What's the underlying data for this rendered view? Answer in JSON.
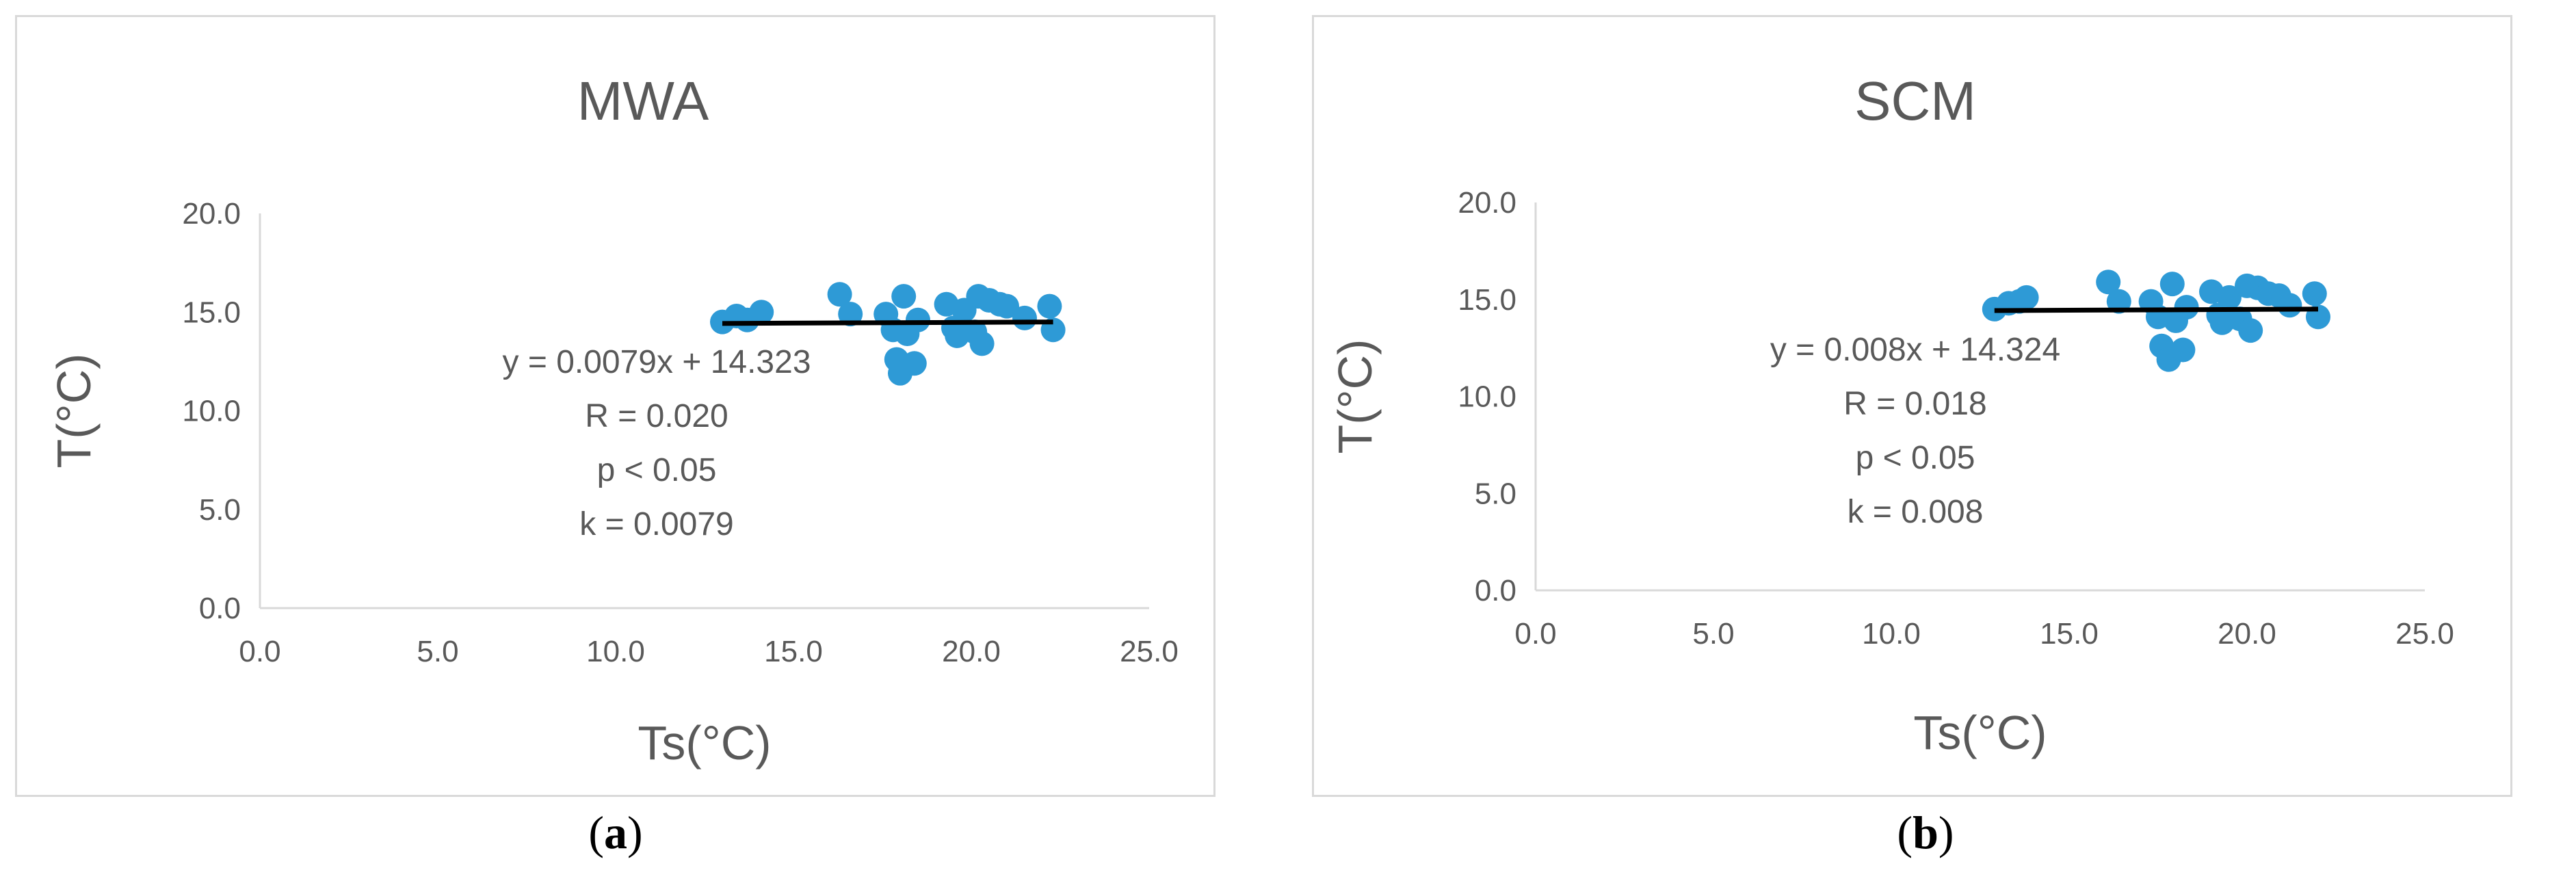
{
  "chart_data": [
    {
      "type": "scatter",
      "panel": "a",
      "title": "MWA",
      "xlabel": "Ts(°C)",
      "ylabel": "T(°C)",
      "xlim": [
        0,
        25
      ],
      "ylim": [
        0,
        20
      ],
      "xticks": [
        "0.0",
        "5.0",
        "10.0",
        "15.0",
        "20.0",
        "25.0"
      ],
      "yticks": [
        "0.0",
        "5.0",
        "10.0",
        "15.0",
        "20.0"
      ],
      "grid": false,
      "marker_color": "#2e9ad6",
      "trendline": {
        "slope": 0.0079,
        "intercept": 14.323,
        "x_range": [
          13.0,
          22.3
        ],
        "color": "#000000"
      },
      "annotation": [
        "y = 0.0079x + 14.323",
        "R = 0.020",
        "p < 0.05",
        "k = 0.0079"
      ],
      "points": [
        [
          13.0,
          14.5
        ],
        [
          13.4,
          14.8
        ],
        [
          13.7,
          14.6
        ],
        [
          14.1,
          15.0
        ],
        [
          16.3,
          15.9
        ],
        [
          16.6,
          14.9
        ],
        [
          17.6,
          14.9
        ],
        [
          17.8,
          14.1
        ],
        [
          17.9,
          12.6
        ],
        [
          18.0,
          11.9
        ],
        [
          18.1,
          15.8
        ],
        [
          18.2,
          13.9
        ],
        [
          18.4,
          12.4
        ],
        [
          18.5,
          14.6
        ],
        [
          19.3,
          15.4
        ],
        [
          19.5,
          14.2
        ],
        [
          19.6,
          13.8
        ],
        [
          19.8,
          15.1
        ],
        [
          20.1,
          14.0
        ],
        [
          20.2,
          15.8
        ],
        [
          20.3,
          13.4
        ],
        [
          20.5,
          15.6
        ],
        [
          20.8,
          15.4
        ],
        [
          21.0,
          15.3
        ],
        [
          21.5,
          14.7
        ],
        [
          22.2,
          15.3
        ],
        [
          22.3,
          14.1
        ]
      ]
    },
    {
      "type": "scatter",
      "panel": "b",
      "title": "SCM",
      "xlabel": "Ts(°C)",
      "ylabel": "T(°C)",
      "xlim": [
        0,
        25
      ],
      "ylim": [
        0,
        20
      ],
      "xticks": [
        "0.0",
        "5.0",
        "10.0",
        "15.0",
        "20.0",
        "25.0"
      ],
      "yticks": [
        "0.0",
        "5.0",
        "10.0",
        "15.0",
        "20.0"
      ],
      "grid": false,
      "marker_color": "#2e9ad6",
      "trendline": {
        "slope": 0.008,
        "intercept": 14.324,
        "x_range": [
          12.9,
          22.0
        ],
        "color": "#000000"
      },
      "annotation": [
        "y = 0.008x + 14.324",
        "R = 0.018",
        "p < 0.05",
        "k = 0.008"
      ],
      "points": [
        [
          12.9,
          14.5
        ],
        [
          13.3,
          14.8
        ],
        [
          13.6,
          14.9
        ],
        [
          13.8,
          15.1
        ],
        [
          16.1,
          15.9
        ],
        [
          16.4,
          14.9
        ],
        [
          17.3,
          14.9
        ],
        [
          17.5,
          14.1
        ],
        [
          17.6,
          12.6
        ],
        [
          17.8,
          11.9
        ],
        [
          17.9,
          15.8
        ],
        [
          18.0,
          13.9
        ],
        [
          18.2,
          12.4
        ],
        [
          18.3,
          14.6
        ],
        [
          19.0,
          15.4
        ],
        [
          19.2,
          14.2
        ],
        [
          19.3,
          13.8
        ],
        [
          19.5,
          15.1
        ],
        [
          19.8,
          14.0
        ],
        [
          20.0,
          15.7
        ],
        [
          20.1,
          13.4
        ],
        [
          20.3,
          15.6
        ],
        [
          20.6,
          15.3
        ],
        [
          20.9,
          15.2
        ],
        [
          21.2,
          14.7
        ],
        [
          21.9,
          15.3
        ],
        [
          22.0,
          14.1
        ]
      ]
    }
  ],
  "captions": {
    "a": "a",
    "b": "b"
  }
}
